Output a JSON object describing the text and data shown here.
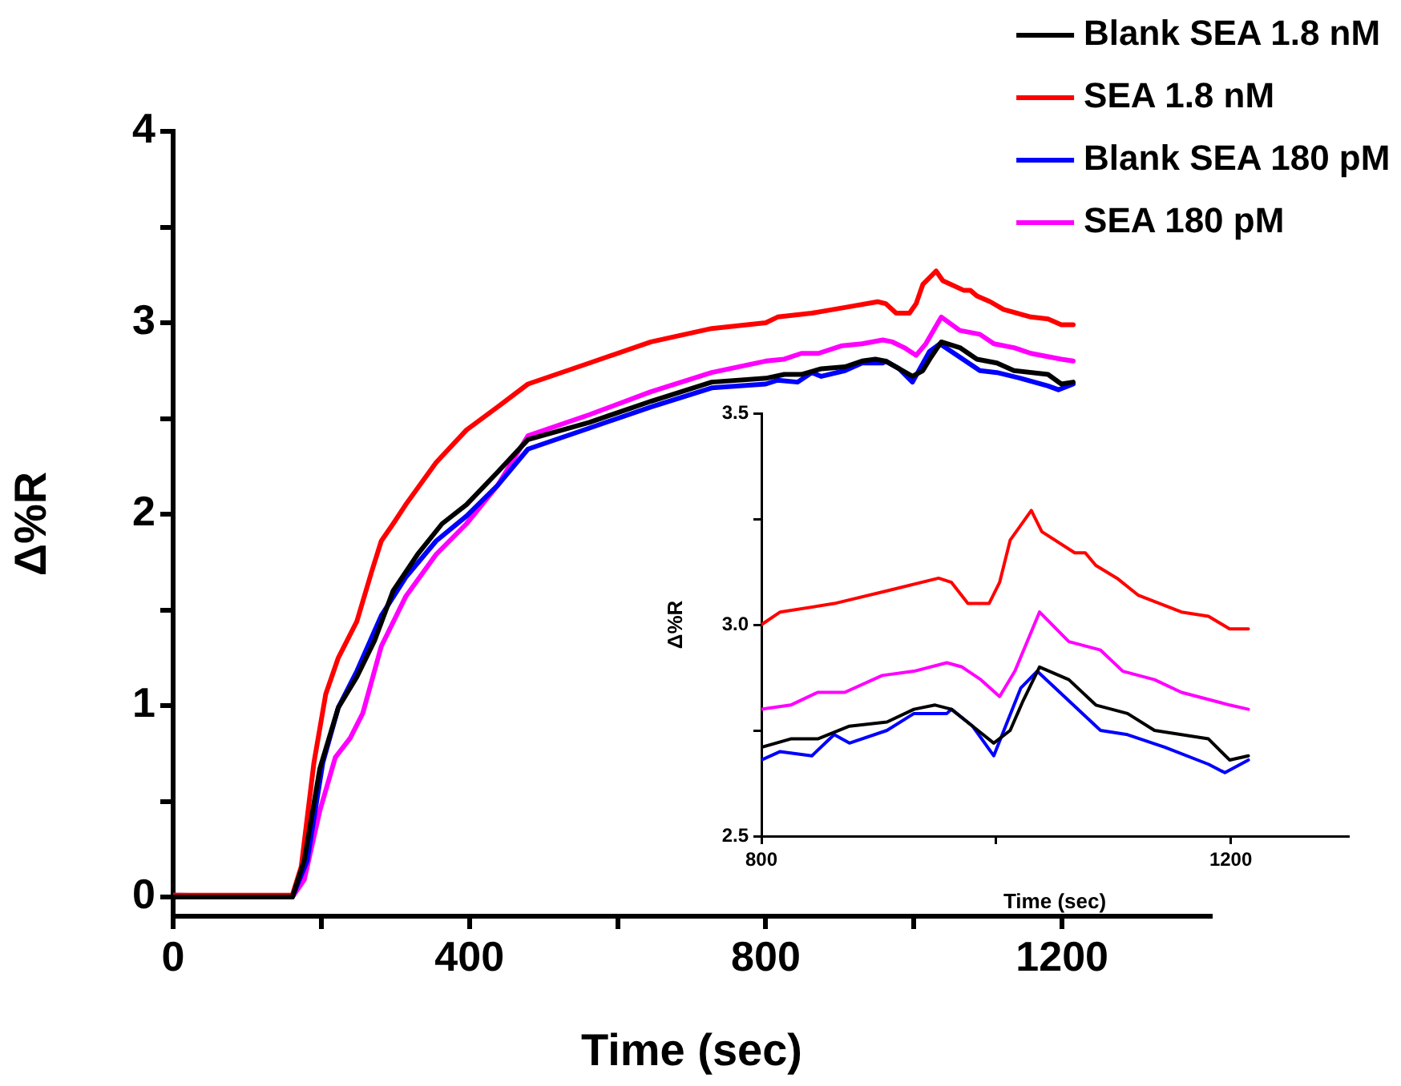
{
  "chart_data": [
    {
      "type": "line",
      "xlabel": "Time (sec)",
      "ylabel": "Δ%R",
      "xlim": [
        0,
        1400
      ],
      "xticks": [
        0,
        {
          "value": 200,
          "label": null
        },
        400,
        {
          "value": 600,
          "label": null
        },
        800,
        {
          "value": 1000,
          "label": null
        },
        1200
      ],
      "ylim": [
        -0.1,
        4
      ],
      "yticks": [
        0,
        {
          "value": 0.5,
          "label": null
        },
        1,
        {
          "value": 1.5,
          "label": null
        },
        2,
        {
          "value": 2.5,
          "label": null
        },
        3,
        {
          "value": 3.5,
          "label": null
        },
        4
      ],
      "grid": false,
      "legend": "top right",
      "series": [
        {
          "name": "Blank SEA 1.8 nM",
          "color": "#000000",
          "x": [
            0,
            161,
            177,
            198,
            223,
            248,
            272,
            297,
            330,
            363,
            396,
            438,
            479,
            562,
            645,
            727,
            800,
            825,
            848,
            875,
            907,
            930,
            948,
            962,
            980,
            998,
            1012,
            1023,
            1037,
            1062,
            1085,
            1112,
            1135,
            1181,
            1199,
            1215
          ],
          "values": [
            0,
            0,
            0.19,
            0.67,
            0.99,
            1.15,
            1.34,
            1.6,
            1.79,
            1.95,
            2.05,
            2.22,
            2.39,
            2.48,
            2.59,
            2.69,
            2.71,
            2.73,
            2.73,
            2.76,
            2.77,
            2.8,
            2.81,
            2.8,
            2.76,
            2.72,
            2.75,
            2.82,
            2.9,
            2.87,
            2.81,
            2.79,
            2.75,
            2.73,
            2.68,
            2.69
          ]
        },
        {
          "name": "SEA 1.8 nM",
          "color": "#ff0000",
          "x": [
            0,
            161,
            173,
            190,
            206,
            223,
            248,
            268,
            281,
            297,
            314,
            355,
            396,
            438,
            479,
            562,
            645,
            727,
            800,
            816,
            862,
            907,
            951,
            962,
            976,
            994,
            1003,
            1012,
            1030,
            1039,
            1067,
            1076,
            1085,
            1103,
            1121,
            1158,
            1181,
            1199,
            1215
          ],
          "values": [
            0.01,
            0.01,
            0.16,
            0.7,
            1.06,
            1.25,
            1.44,
            1.7,
            1.86,
            1.95,
            2.05,
            2.27,
            2.44,
            2.56,
            2.68,
            2.79,
            2.9,
            2.97,
            3.0,
            3.03,
            3.05,
            3.08,
            3.11,
            3.1,
            3.05,
            3.05,
            3.1,
            3.2,
            3.27,
            3.22,
            3.17,
            3.17,
            3.14,
            3.11,
            3.07,
            3.03,
            3.02,
            2.99,
            2.99
          ]
        },
        {
          "name": "Blank SEA 180 pM",
          "color": "#0000ff",
          "x": [
            0,
            161,
            181,
            202,
            223,
            248,
            281,
            314,
            355,
            396,
            438,
            479,
            562,
            645,
            727,
            800,
            816,
            843,
            862,
            875,
            907,
            930,
            958,
            962,
            980,
            998,
            1021,
            1035,
            1062,
            1089,
            1112,
            1144,
            1181,
            1195,
            1215
          ],
          "values": [
            0.01,
            0,
            0.19,
            0.7,
            0.99,
            1.18,
            1.47,
            1.67,
            1.86,
            1.99,
            2.15,
            2.34,
            2.45,
            2.56,
            2.66,
            2.68,
            2.7,
            2.69,
            2.74,
            2.72,
            2.75,
            2.79,
            2.79,
            2.8,
            2.76,
            2.69,
            2.85,
            2.89,
            2.82,
            2.75,
            2.74,
            2.71,
            2.67,
            2.65,
            2.68
          ]
        },
        {
          "name": "SEA 180 pM",
          "color": "#ff00ff",
          "x": [
            0,
            161,
            177,
            198,
            219,
            239,
            256,
            281,
            314,
            355,
            396,
            438,
            479,
            562,
            645,
            727,
            800,
            825,
            848,
            871,
            903,
            930,
            958,
            971,
            987,
            1003,
            1016,
            1037,
            1062,
            1089,
            1108,
            1135,
            1158,
            1199,
            1215
          ],
          "values": [
            0,
            0,
            0.09,
            0.45,
            0.73,
            0.83,
            0.96,
            1.31,
            1.57,
            1.79,
            1.95,
            2.15,
            2.41,
            2.52,
            2.64,
            2.74,
            2.8,
            2.81,
            2.84,
            2.84,
            2.88,
            2.89,
            2.91,
            2.9,
            2.87,
            2.83,
            2.89,
            3.03,
            2.96,
            2.94,
            2.89,
            2.87,
            2.84,
            2.81,
            2.8
          ]
        }
      ]
    },
    {
      "type": "line",
      "xlabel": "Time (sec)",
      "ylabel": "Δ%R",
      "xlim": [
        800,
        1300
      ],
      "xticks": [
        800,
        {
          "value": 1000,
          "label": null
        },
        1200
      ],
      "ylim": [
        2.5,
        3.5
      ],
      "yticks": [
        2.5,
        {
          "value": 2.75,
          "label": null
        },
        {
          "value": 3.0,
          "label": "3.0"
        },
        {
          "value": 3.25,
          "label": null
        },
        3.5
      ],
      "grid": false,
      "series": [
        {
          "color": "#000000",
          "x": [
            800,
            825,
            848,
            875,
            907,
            930,
            948,
            962,
            980,
            998,
            1012,
            1023,
            1037,
            1062,
            1085,
            1112,
            1135,
            1181,
            1199,
            1215
          ],
          "values": [
            2.71,
            2.73,
            2.73,
            2.76,
            2.77,
            2.8,
            2.81,
            2.8,
            2.76,
            2.72,
            2.75,
            2.82,
            2.9,
            2.87,
            2.81,
            2.79,
            2.75,
            2.73,
            2.68,
            2.69
          ]
        },
        {
          "color": "#ff0000",
          "x": [
            800,
            816,
            862,
            907,
            951,
            962,
            976,
            994,
            1003,
            1012,
            1030,
            1039,
            1067,
            1076,
            1085,
            1103,
            1121,
            1158,
            1181,
            1199,
            1215
          ],
          "values": [
            3.0,
            3.03,
            3.05,
            3.08,
            3.11,
            3.1,
            3.05,
            3.05,
            3.1,
            3.2,
            3.27,
            3.22,
            3.17,
            3.17,
            3.14,
            3.11,
            3.07,
            3.03,
            3.02,
            2.99,
            2.99
          ]
        },
        {
          "color": "#0000ff",
          "x": [
            800,
            816,
            843,
            862,
            875,
            907,
            930,
            958,
            962,
            980,
            998,
            1021,
            1035,
            1062,
            1089,
            1112,
            1144,
            1181,
            1195,
            1215
          ],
          "values": [
            2.68,
            2.7,
            2.69,
            2.74,
            2.72,
            2.75,
            2.79,
            2.79,
            2.8,
            2.76,
            2.69,
            2.85,
            2.89,
            2.82,
            2.75,
            2.74,
            2.71,
            2.67,
            2.65,
            2.68
          ]
        },
        {
          "color": "#ff00ff",
          "x": [
            800,
            825,
            848,
            871,
            903,
            930,
            958,
            971,
            987,
            1003,
            1016,
            1037,
            1062,
            1089,
            1108,
            1135,
            1158,
            1199,
            1215
          ],
          "values": [
            2.8,
            2.81,
            2.84,
            2.84,
            2.88,
            2.89,
            2.91,
            2.9,
            2.87,
            2.83,
            2.89,
            3.03,
            2.96,
            2.94,
            2.89,
            2.87,
            2.84,
            2.81,
            2.8
          ]
        }
      ]
    }
  ]
}
